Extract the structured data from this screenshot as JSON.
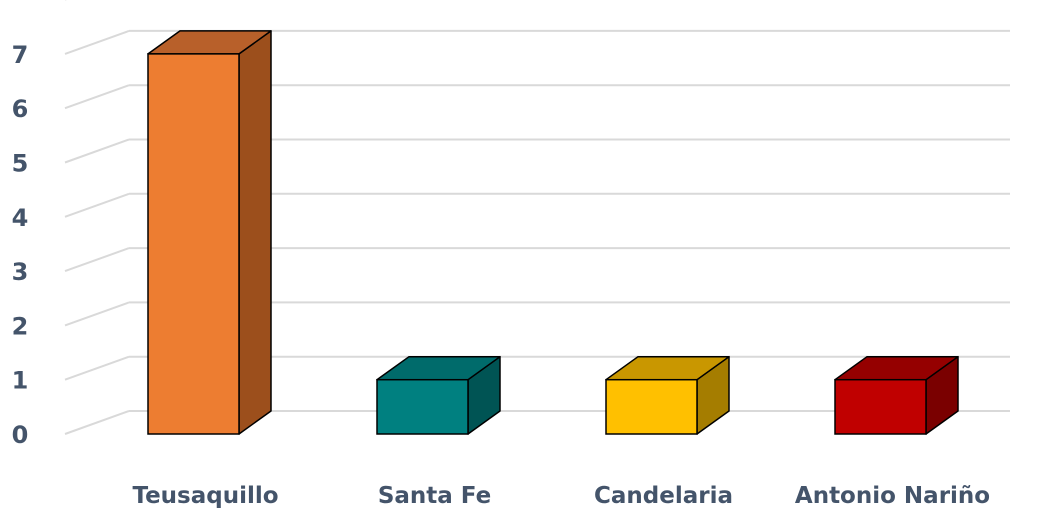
{
  "chart_data": {
    "type": "bar",
    "style": "3d-column",
    "categories": [
      "Teusaquillo",
      "Santa Fe",
      "Candelaria",
      "Antonio Nariño"
    ],
    "values": [
      7,
      1,
      1,
      1
    ],
    "colors": [
      "#ed7d31",
      "#008080",
      "#ffc000",
      "#c00000"
    ],
    "side_colors": [
      "#9c4f1c",
      "#005454",
      "#a57d00",
      "#7a0000"
    ],
    "top_colors": [
      "#b8602a",
      "#006b6b",
      "#c99700",
      "#950000"
    ],
    "yticks": [
      "0",
      "1",
      "2",
      "3",
      "4",
      "5",
      "6",
      "7"
    ],
    "ylim": [
      0,
      7
    ],
    "grid": true,
    "legend": "none",
    "title": "",
    "xlabel": "",
    "ylabel": ""
  }
}
